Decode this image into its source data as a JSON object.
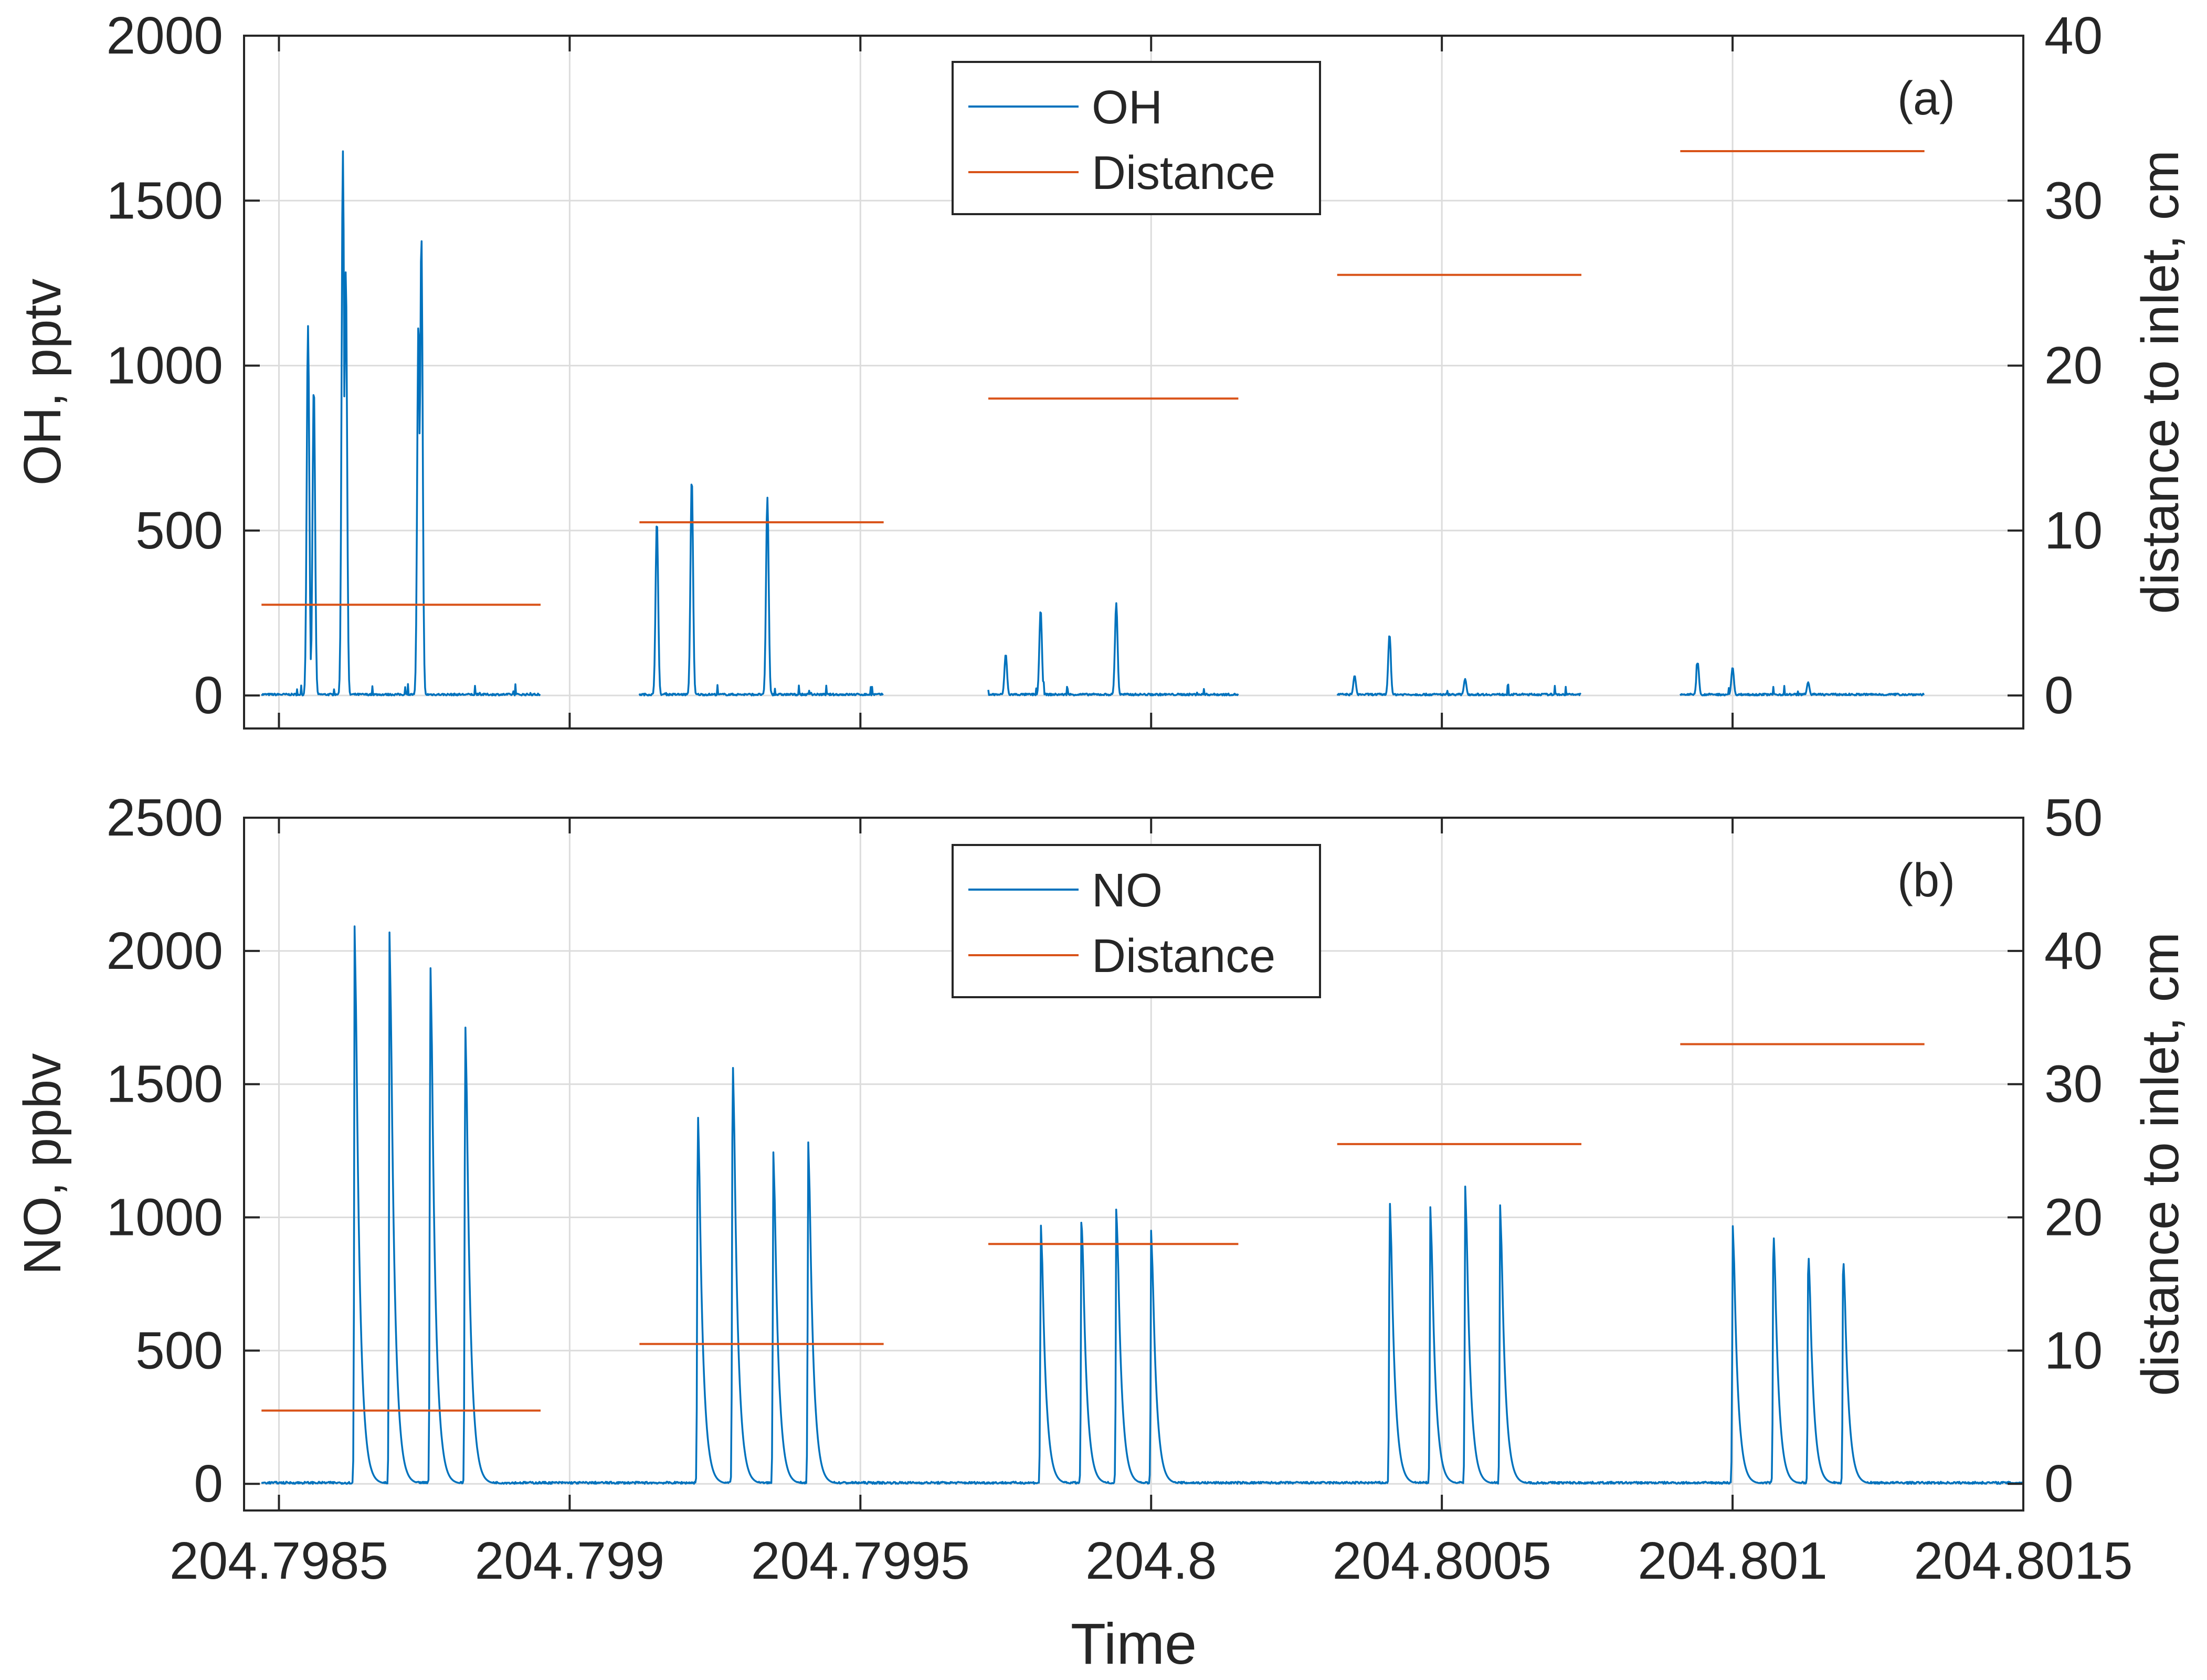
{
  "figure": {
    "xlabel": "Time",
    "x_ticks": [
      "204.7985",
      "204.799",
      "204.7995",
      "204.8",
      "204.8005",
      "204.801",
      "204.8015"
    ],
    "colors": {
      "series": "#0072BD",
      "distance": "#D95319",
      "axis": "#262626",
      "grid": "#dcdcdc"
    }
  },
  "chart_data": [
    {
      "type": "line",
      "panel_label": "(a)",
      "ylabel": "OH, pptv",
      "ylabel_right": "distance to inlet, cm",
      "xlim": [
        204.79844,
        204.8015
      ],
      "ylim": [
        -100,
        2000
      ],
      "ylim_right": [
        -2,
        40
      ],
      "y_ticks": [
        "0",
        "500",
        "1000",
        "1500",
        "2000"
      ],
      "y_ticks_right": [
        "0",
        "10",
        "20",
        "30",
        "40"
      ],
      "grid": true,
      "legend": {
        "position": "top-center",
        "entries": [
          "OH",
          "Distance"
        ]
      },
      "series": [
        {
          "name": "OH",
          "axis": "left",
          "segments": [
            {
              "x_start": 204.79847,
              "x_end": 204.79895,
              "peaks": [
                [
                  204.79855,
                  1120
                ],
                [
                  204.79856,
                  940
                ],
                [
                  204.79861,
                  1650
                ],
                [
                  204.798615,
                  1290
                ],
                [
                  204.79874,
                  1140
                ],
                [
                  204.798745,
                  1400
                ]
              ]
            },
            {
              "x_start": 204.79912,
              "x_end": 204.79954,
              "peaks": [
                [
                  204.79915,
                  530
                ],
                [
                  204.79921,
                  660
                ],
                [
                  204.79934,
                  600
                ]
              ]
            },
            {
              "x_start": 204.79972,
              "x_end": 204.80015,
              "peaks": [
                [
                  204.79975,
                  125
                ],
                [
                  204.79981,
                  260
                ],
                [
                  204.79994,
                  280
                ]
              ]
            },
            {
              "x_start": 204.80032,
              "x_end": 204.80074,
              "peaks": [
                [
                  204.80035,
                  60
                ],
                [
                  204.80041,
                  185
                ],
                [
                  204.80054,
                  50
                ]
              ]
            },
            {
              "x_start": 204.80091,
              "x_end": 204.80133,
              "peaks": [
                [
                  204.80094,
                  100
                ],
                [
                  204.801,
                  85
                ],
                [
                  204.80113,
                  40
                ]
              ]
            }
          ]
        },
        {
          "name": "Distance",
          "axis": "right",
          "steps": [
            {
              "x": [
                204.79847,
                204.79895
              ],
              "y": 5.5
            },
            {
              "x": [
                204.79912,
                204.79954
              ],
              "y": 10.5
            },
            {
              "x": [
                204.79972,
                204.80015
              ],
              "y": 18
            },
            {
              "x": [
                204.80032,
                204.80074
              ],
              "y": 25.5
            },
            {
              "x": [
                204.80091,
                204.80133
              ],
              "y": 33
            }
          ]
        }
      ]
    },
    {
      "type": "line",
      "panel_label": "(b)",
      "ylabel": "NO, ppbv",
      "ylabel_right": "distance to inlet, cm",
      "xlim": [
        204.79844,
        204.8015
      ],
      "ylim": [
        -100,
        2500
      ],
      "ylim_right": [
        -2,
        50
      ],
      "y_ticks": [
        "0",
        "500",
        "1000",
        "1500",
        "2000",
        "2500"
      ],
      "y_ticks_right": [
        "0",
        "10",
        "20",
        "30",
        "40",
        "50"
      ],
      "grid": true,
      "legend": {
        "position": "top-center",
        "entries": [
          "NO",
          "Distance"
        ]
      },
      "series": [
        {
          "name": "NO",
          "axis": "left",
          "x_range": [
            204.79847,
            204.8015
          ],
          "peaks": [
            [
              204.79863,
              2100
            ],
            [
              204.79869,
              2080
            ],
            [
              204.79876,
              2020
            ],
            [
              204.79882,
              1790
            ],
            [
              204.79922,
              1450
            ],
            [
              204.79928,
              1650
            ],
            [
              204.79935,
              1270
            ],
            [
              204.79941,
              1310
            ],
            [
              204.79981,
              1000
            ],
            [
              204.79988,
              1020
            ],
            [
              204.79994,
              1050
            ],
            [
              204.8,
              950
            ],
            [
              204.80041,
              1100
            ],
            [
              204.80048,
              1050
            ],
            [
              204.80054,
              1130
            ],
            [
              204.8006,
              1060
            ],
            [
              204.801,
              990
            ],
            [
              204.80107,
              980
            ],
            [
              204.80113,
              900
            ],
            [
              204.80119,
              880
            ]
          ]
        },
        {
          "name": "Distance",
          "axis": "right",
          "steps": [
            {
              "x": [
                204.79847,
                204.79895
              ],
              "y": 5.5
            },
            {
              "x": [
                204.79912,
                204.79954
              ],
              "y": 10.5
            },
            {
              "x": [
                204.79972,
                204.80015
              ],
              "y": 18
            },
            {
              "x": [
                204.80032,
                204.80074
              ],
              "y": 25.5
            },
            {
              "x": [
                204.80091,
                204.80133
              ],
              "y": 33
            }
          ]
        }
      ]
    }
  ]
}
